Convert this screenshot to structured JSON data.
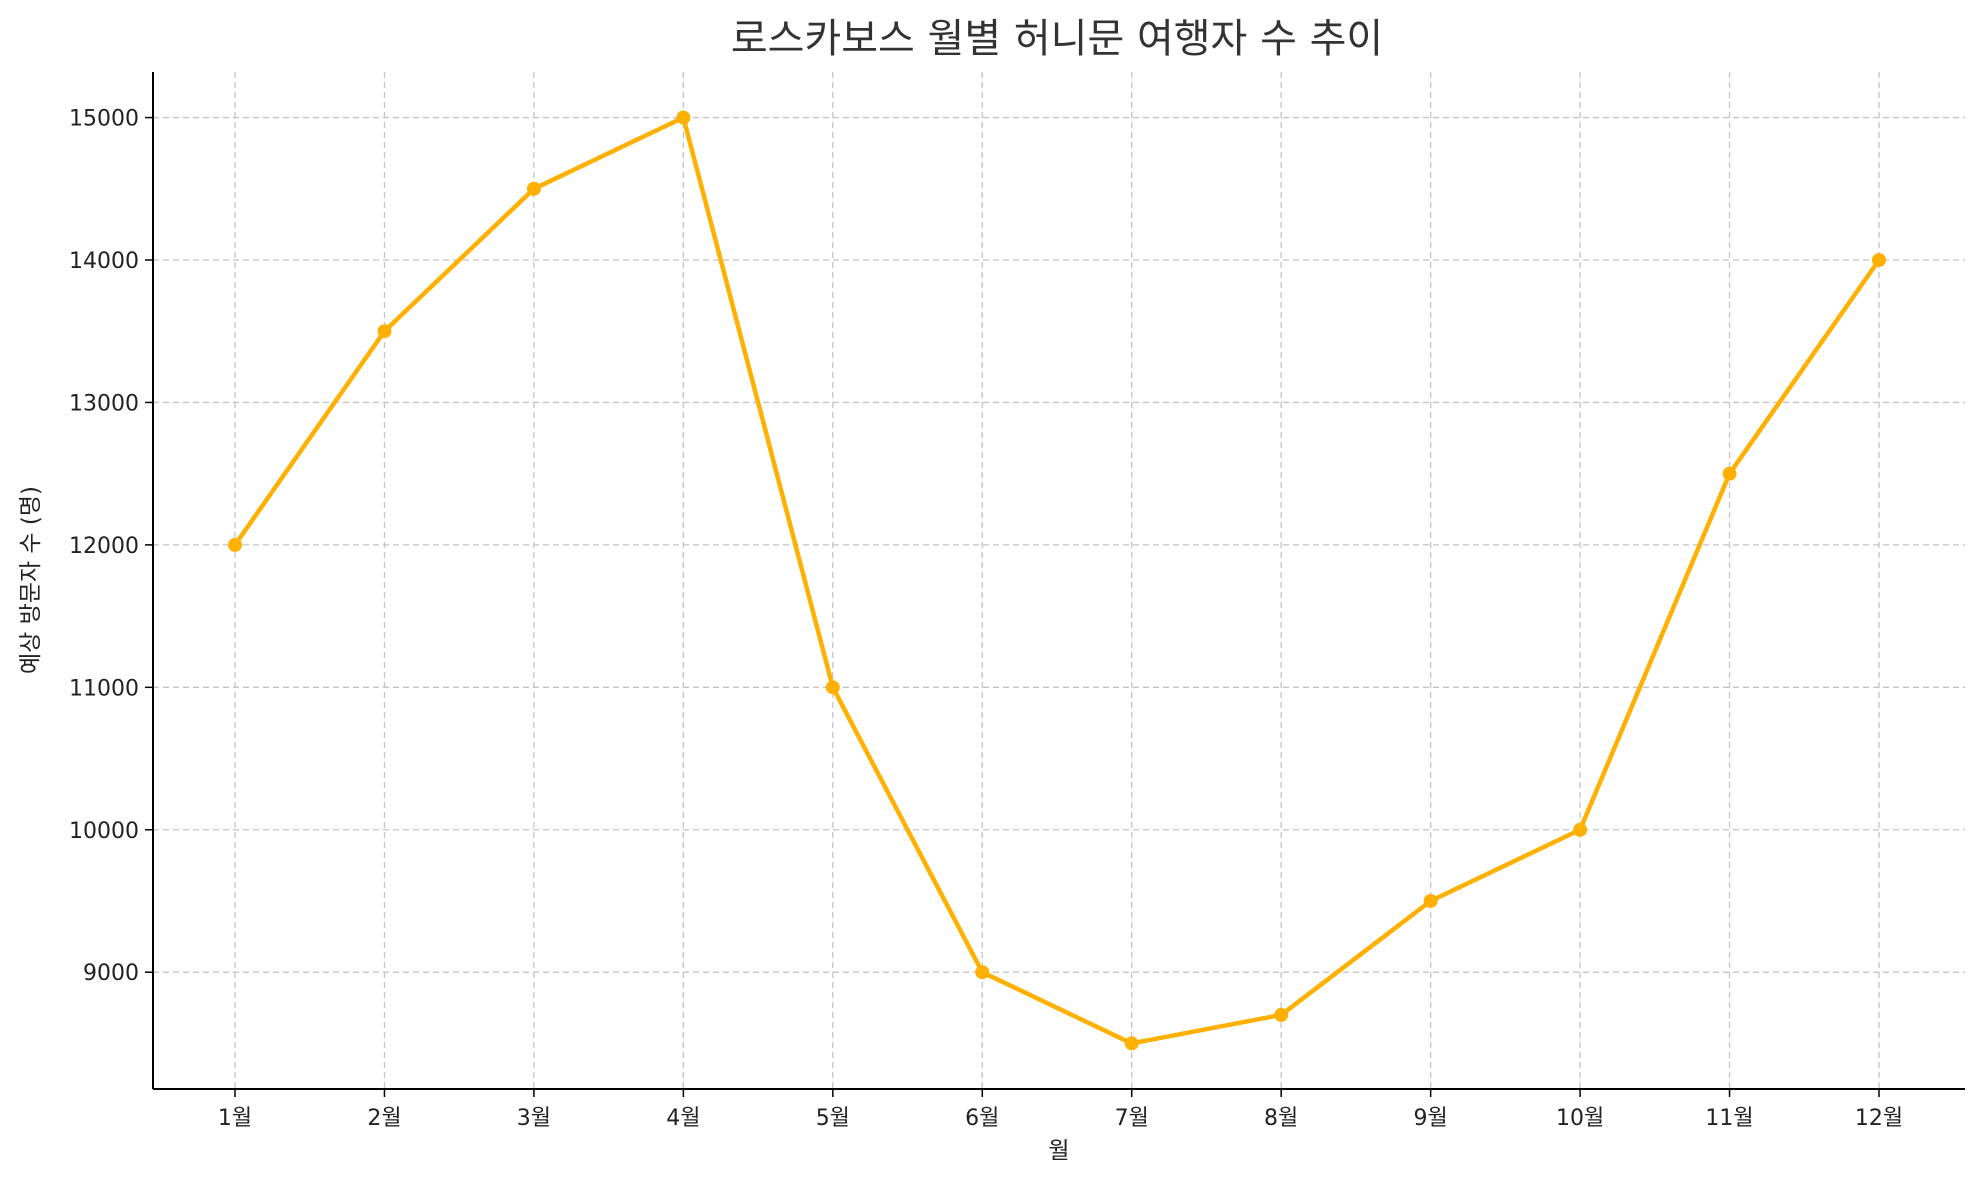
{
  "chart_data": {
    "type": "line",
    "title": "로스카보스 월별 허니문 여행자 수 추이",
    "xlabel": "월",
    "ylabel": "예상 방문자 수 (명)",
    "categories": [
      "1월",
      "2월",
      "3월",
      "4월",
      "5월",
      "6월",
      "7월",
      "8월",
      "9월",
      "10월",
      "11월",
      "12월"
    ],
    "series": [
      {
        "values": [
          12000,
          13500,
          14500,
          15000,
          11000,
          9000,
          8500,
          8700,
          9500,
          10000,
          12500,
          14000
        ],
        "color": "#FFB000"
      }
    ],
    "yticks": [
      9000,
      10000,
      11000,
      12000,
      13000,
      14000,
      15000
    ],
    "ylim": [
      8180,
      15320
    ],
    "grid": true,
    "marker": "circle"
  }
}
